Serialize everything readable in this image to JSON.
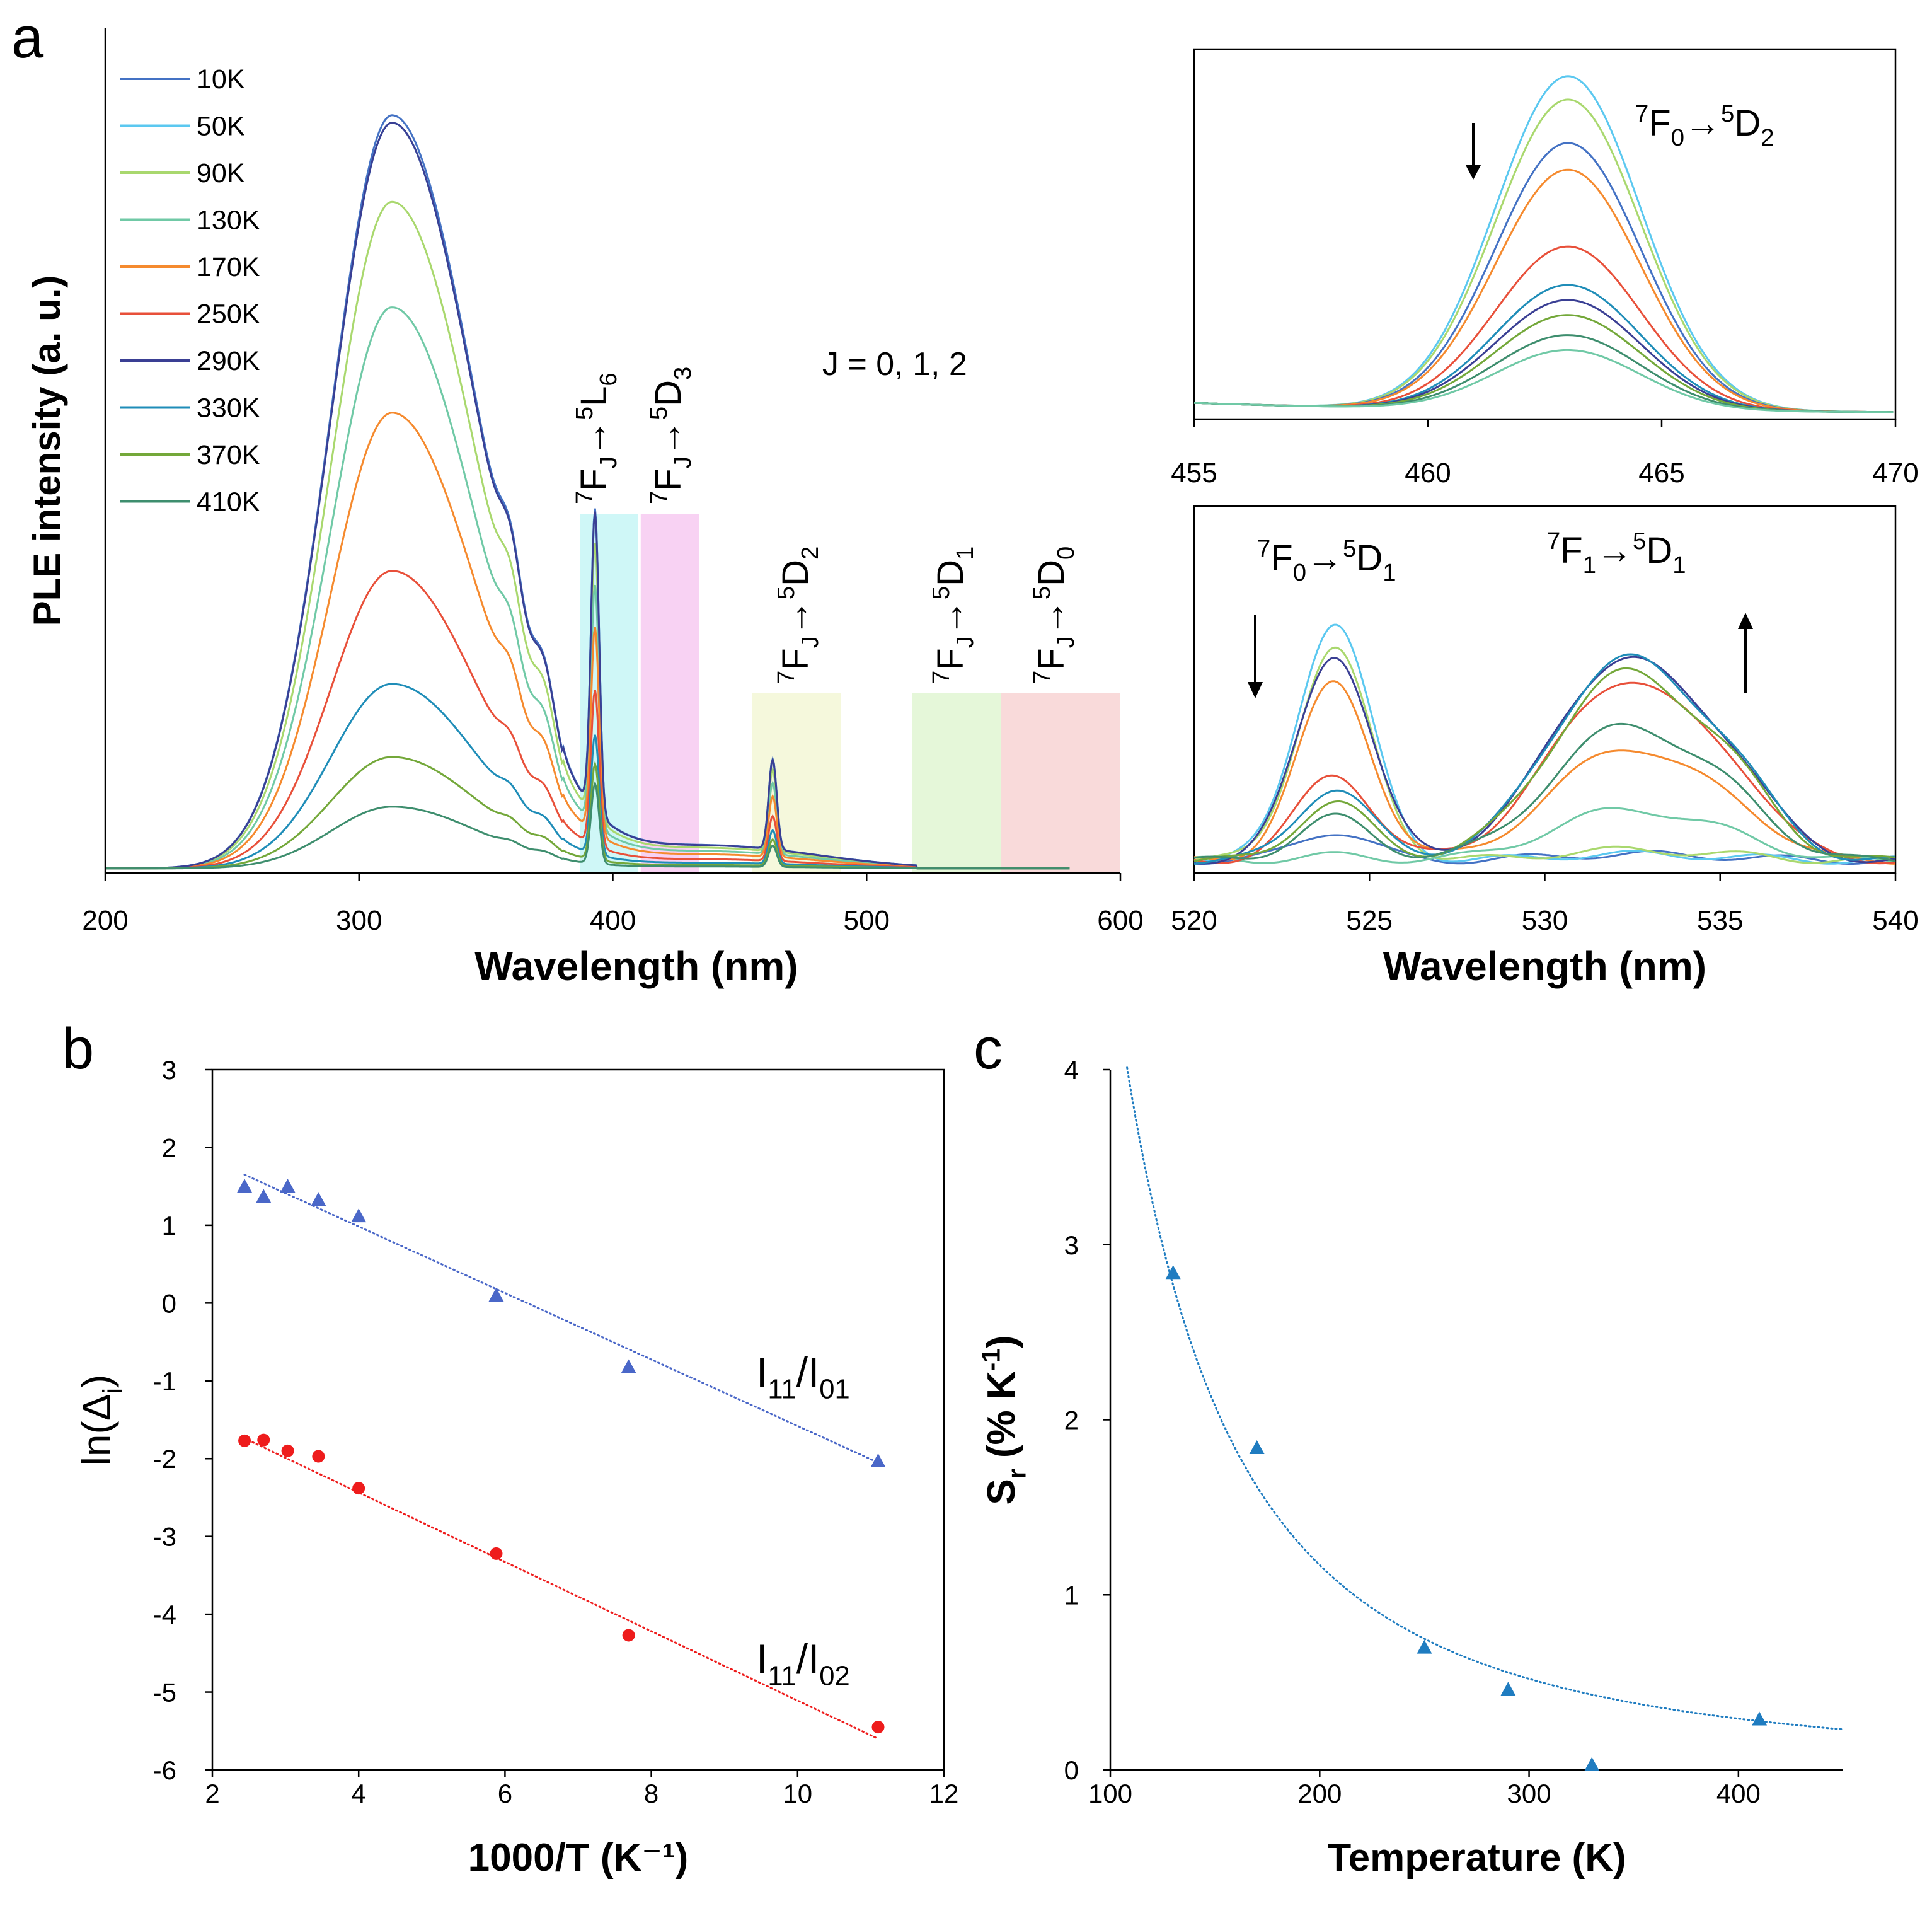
{
  "panel_labels": {
    "a": "a",
    "b": "b",
    "c": "c"
  },
  "chart_data": [
    {
      "id": "a_main",
      "type": "line",
      "xlabel": "Wavelength (nm)",
      "ylabel": "PLE intensity (a. u.)",
      "xlim": [
        200,
        600
      ],
      "xticks": [
        "200",
        "300",
        "400",
        "500",
        "600"
      ],
      "legend": [
        "10K",
        "50K",
        "90K",
        "130K",
        "170K",
        "250K",
        "290K",
        "330K",
        "370K",
        "410K"
      ],
      "series_colors": [
        "#4472C4",
        "#5BC8F0",
        "#A9D86E",
        "#70C9A6",
        "#F58A2E",
        "#E8503A",
        "#3A3F94",
        "#1F8DB8",
        "#74A83A",
        "#3E8E6E"
      ],
      "series_peak_312nm": [
        1.0,
        0.99,
        0.885,
        0.745,
        0.605,
        0.395,
        0.99,
        0.245,
        0.148,
        0.082
      ],
      "bands": [
        {
          "label_main": "7",
          "f": "F",
          "sub1": "J",
          "arrow": "→",
          "sup2": "5",
          "g": "L",
          "sub2": "6",
          "from": 387,
          "to": 410,
          "color": "#CFF7F7"
        },
        {
          "label_main": "7",
          "f": "F",
          "sub1": "J",
          "arrow": "→",
          "sup2": "5",
          "g": "D",
          "sub2": "3",
          "from": 411,
          "to": 434,
          "color": "#F8D2F3"
        },
        {
          "label_main": "7",
          "f": "F",
          "sub1": "J",
          "arrow": "→",
          "sup2": "5",
          "g": "D",
          "sub2": "2",
          "from": 455,
          "to": 490,
          "color": "#F5F8DC"
        },
        {
          "label_main": "7",
          "f": "F",
          "sub1": "J",
          "arrow": "→",
          "sup2": "5",
          "g": "D",
          "sub2": "1",
          "from": 518,
          "to": 553,
          "color": "#E5F7D9"
        },
        {
          "label_main": "7",
          "f": "F",
          "sub1": "J",
          "arrow": "→",
          "sup2": "5",
          "g": "D",
          "sub2": "0",
          "from": 553,
          "to": 600,
          "color": "#F9DADA"
        }
      ],
      "annotation": "J = 0,  1, 2"
    },
    {
      "id": "a_inset_top",
      "type": "line",
      "xlim": [
        455,
        470
      ],
      "xticks": [
        "455",
        "460",
        "465",
        "470"
      ],
      "peak_nm": 463,
      "annotation": {
        "sup1": "7",
        "f": "F",
        "sub1": "0",
        "arrow": "→",
        "sup2": "5",
        "d": "D",
        "sub2": "2"
      },
      "arrow_direction": "down",
      "series_heights": [
        1.0,
        0.93,
        0.8,
        0.72,
        0.49,
        0.375,
        0.33,
        0.285,
        0.225,
        0.18
      ]
    },
    {
      "id": "a_inset_bottom",
      "type": "line",
      "xlabel": "Wavelength (nm)",
      "xlim": [
        520,
        540
      ],
      "xticks": [
        "520",
        "525",
        "530",
        "535",
        "540"
      ],
      "annotations": [
        {
          "sup1": "7",
          "f": "F",
          "sub1": "0",
          "arrow": "→",
          "sup2": "5",
          "d": "D",
          "sub2": "1"
        },
        {
          "sup1": "7",
          "f": "F",
          "sub1": "1",
          "arrow": "→",
          "sup2": "5",
          "d": "D",
          "sub2": "1"
        }
      ],
      "arrows": [
        "down",
        "up"
      ],
      "peak1_heights": [
        0.12,
        0.99,
        0.88,
        0.02,
        0.74,
        0.36,
        0.86,
        0.3,
        0.24,
        0.18
      ],
      "peak2_heights": [
        0.03,
        0.03,
        0.05,
        0.25,
        0.55,
        0.88,
        0.99,
        0.99,
        0.92,
        0.66
      ]
    },
    {
      "id": "b",
      "type": "scatter",
      "xlabel": "1000/T (K⁻¹)",
      "ylabel_main": "ln(Δ",
      "ylabel_sub": "i",
      "ylabel_end": ")",
      "xlim": [
        2,
        12
      ],
      "ylim": [
        -6,
        3
      ],
      "xticks": [
        "2",
        "4",
        "6",
        "8",
        "10",
        "12"
      ],
      "yticks": [
        "3",
        "2",
        "1",
        "0",
        "-1",
        "-2",
        "-3",
        "-4",
        "-5",
        "-6"
      ],
      "series": [
        {
          "name_main": "I",
          "name_sub1": "11",
          "name_mid": "/I",
          "name_sub2": "01",
          "marker": "triangle",
          "color": "#4A67C8",
          "x": [
            2.44,
            2.7,
            3.03,
            3.45,
            4.0,
            5.88,
            7.69,
            11.1
          ],
          "y": [
            1.5,
            1.37,
            1.5,
            1.33,
            1.12,
            0.1,
            -0.82,
            -2.03
          ],
          "fit": [
            [
              2.44,
              1.65
            ],
            [
              11.1,
              -2.05
            ]
          ]
        },
        {
          "name_main": "I",
          "name_sub1": "11",
          "name_mid": "/I",
          "name_sub2": "02",
          "marker": "circle",
          "color": "#EE1C1C",
          "x": [
            2.44,
            2.7,
            3.03,
            3.45,
            4.0,
            5.88,
            7.69,
            11.1
          ],
          "y": [
            -1.77,
            -1.76,
            -1.9,
            -1.97,
            -2.38,
            -3.22,
            -4.27,
            -5.45
          ],
          "fit": [
            [
              2.44,
              -1.74
            ],
            [
              11.1,
              -5.6
            ]
          ]
        }
      ]
    },
    {
      "id": "c",
      "type": "scatter",
      "xlabel": "Temperature (K)",
      "ylabel_main": "S",
      "ylabel_sub": "r",
      "ylabel_end": " (% K",
      "ylabel_sup": "-1",
      "ylabel_close": ")",
      "xlim": [
        100,
        450
      ],
      "ylim": [
        0,
        4
      ],
      "xticks": [
        "100",
        "200",
        "300",
        "400"
      ],
      "yticks": [
        "0",
        "1",
        "2",
        "3",
        "4"
      ],
      "color": "#1F7CC0",
      "x": [
        130,
        170,
        250,
        290,
        330,
        410
      ],
      "y": [
        2.84,
        1.84,
        0.7,
        0.46,
        0.03,
        0.29
      ],
      "fit_coefficient": 46800
    }
  ]
}
